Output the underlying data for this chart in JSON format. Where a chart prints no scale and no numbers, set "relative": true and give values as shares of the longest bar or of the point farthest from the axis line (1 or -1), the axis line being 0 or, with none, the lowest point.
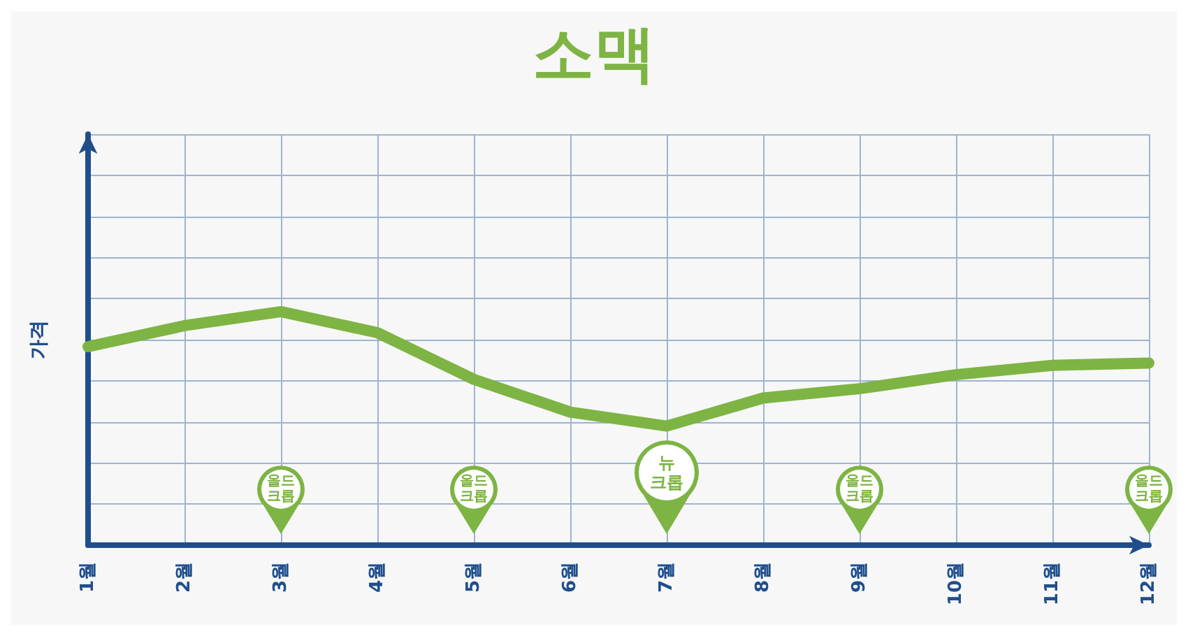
{
  "chart_data": {
    "type": "line",
    "title": "소맥",
    "ylabel": "가격",
    "relative": true,
    "grid": true,
    "line_style": "solid",
    "categories": [
      "1월",
      "2월",
      "3월",
      "4월",
      "5월",
      "6월",
      "7월",
      "8월",
      "9월",
      "10월",
      "11월",
      "12월"
    ],
    "series": [
      {
        "color": "#7db443",
        "values": [
          0.85,
          0.94,
          1,
          0.91,
          0.71,
          0.57,
          0.51,
          0.63,
          0.67,
          0.73,
          0.77,
          0.78
        ]
      }
    ],
    "annotations": [
      "올드 크롭",
      "올드 크롭",
      "뉴 크롭",
      "올드 크롭",
      "올드 크롭"
    ]
  }
}
